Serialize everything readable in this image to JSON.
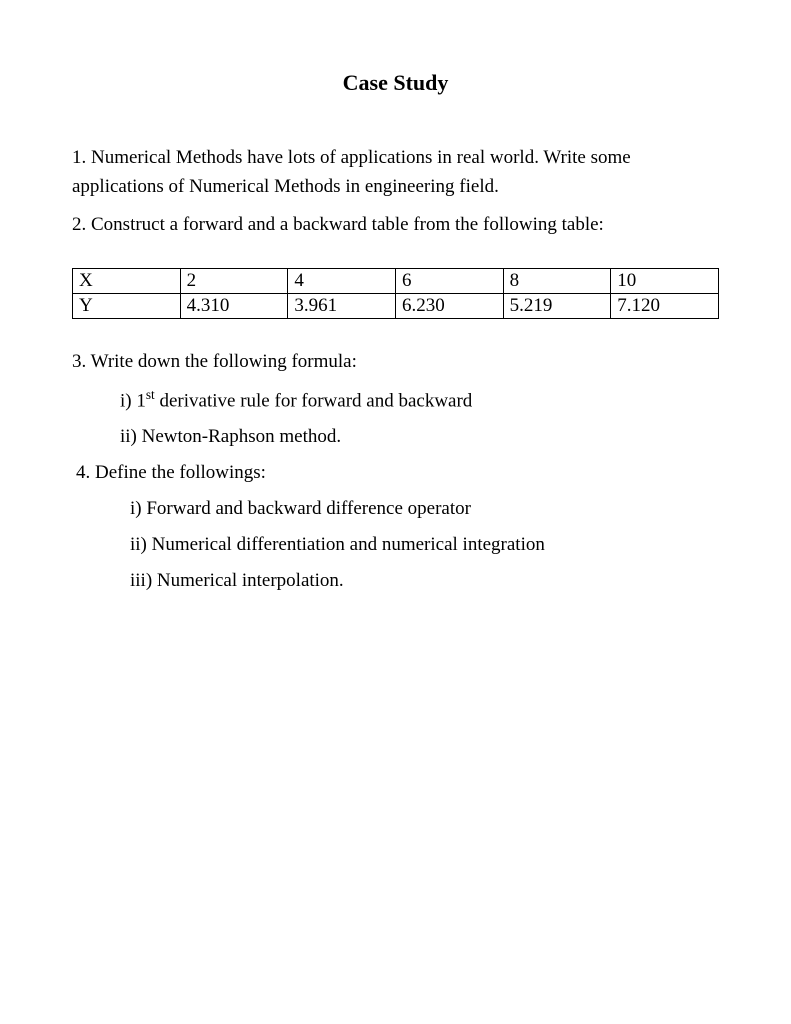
{
  "title": "Case Study",
  "q1": "1. Numerical Methods have lots of applications in real world. Write some applications of Numerical Methods in engineering field.",
  "q2": "2. Construct a forward and a backward table from the following table:",
  "table": {
    "columns": [
      "X",
      "2",
      "4",
      "6",
      "8",
      "10"
    ],
    "rows": [
      [
        "Y",
        "4.310",
        "3.961",
        "6.230",
        "5.219",
        "7.120"
      ]
    ],
    "border_color": "#000000",
    "font_size": 19,
    "cell_align": "left"
  },
  "q3": "3. Write down the following formula:",
  "q3_i_prefix": "i) 1",
  "q3_i_sup": "st",
  "q3_i_suffix": " derivative rule for forward and backward",
  "q3_ii": "ii) Newton-Raphson method.",
  "q4": " 4. Define the followings:",
  "q4_i": "i) Forward and backward difference operator",
  "q4_ii": "ii) Numerical differentiation and numerical integration",
  "q4_iii": "iii) Numerical interpolation.",
  "page_bg": "#ffffff",
  "text_color": "#000000",
  "font_family": "Times New Roman"
}
